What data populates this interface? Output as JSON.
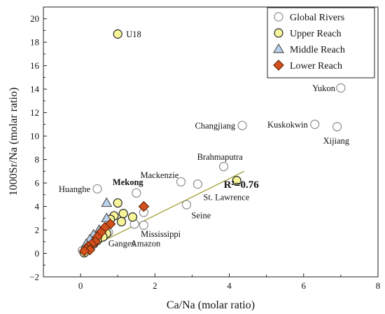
{
  "chart_data": {
    "type": "scatter",
    "xlabel": "Ca/Na (molar ratio)",
    "ylabel": "1000Sr/Na (molar ratio)",
    "xlim": [
      -1,
      8
    ],
    "ylim": [
      -2,
      21
    ],
    "x_ticks": [
      0,
      2,
      4,
      6,
      8
    ],
    "y_ticks": [
      -2,
      0,
      2,
      4,
      6,
      8,
      10,
      12,
      14,
      16,
      18,
      20
    ],
    "x_tick_labels": [
      "0",
      "2",
      "4",
      "6",
      "8"
    ],
    "y_tick_labels": [
      "−2",
      "0",
      "2",
      "4",
      "6",
      "8",
      "10",
      "12",
      "14",
      "16",
      "18",
      "20"
    ],
    "legend_position": "top-right",
    "trendline": {
      "x": [
        0,
        4.4
      ],
      "y": [
        0.1,
        7.0
      ],
      "color": "#9a9a2a",
      "label": "R²=0.76"
    },
    "series": [
      {
        "name": "Global Rivers",
        "marker": "circle",
        "fill": "#ffffff",
        "stroke": "#8c8c8c",
        "points": [
          {
            "x": 7.0,
            "y": 14.1,
            "label": "Yukon"
          },
          {
            "x": 4.35,
            "y": 10.9,
            "label": "Changjiang"
          },
          {
            "x": 6.3,
            "y": 11.0,
            "label": "Kuskokwin"
          },
          {
            "x": 6.9,
            "y": 10.8,
            "label": "Xijiang"
          },
          {
            "x": 3.85,
            "y": 7.4,
            "label": "Brahmaputra"
          },
          {
            "x": 2.7,
            "y": 6.1,
            "label": "Mackenzie"
          },
          {
            "x": 3.15,
            "y": 5.9,
            "label": "St. Lawrence"
          },
          {
            "x": 0.45,
            "y": 5.5,
            "label": "Huanghe"
          },
          {
            "x": 1.5,
            "y": 5.15,
            "label": "Mekong"
          },
          {
            "x": 2.85,
            "y": 4.15,
            "label": "Seine"
          },
          {
            "x": 1.45,
            "y": 2.5,
            "label": "Mississippi"
          },
          {
            "x": 1.7,
            "y": 3.5,
            "label": ""
          },
          {
            "x": 1.7,
            "y": 2.4,
            "label": ""
          },
          {
            "x": 0.75,
            "y": 1.8,
            "label": ""
          },
          {
            "x": 0.55,
            "y": 1.4,
            "label": ""
          },
          {
            "x": 0.3,
            "y": 0.85,
            "label": ""
          },
          {
            "x": 0.15,
            "y": 0.5,
            "label": ""
          },
          {
            "x": 0.05,
            "y": 0.25,
            "label": ""
          }
        ]
      },
      {
        "name": "Upper Reach",
        "marker": "circle",
        "fill": "#f7f59a",
        "stroke": "#222222",
        "points": [
          {
            "x": 1.0,
            "y": 18.7,
            "label": "U18"
          },
          {
            "x": 4.2,
            "y": 6.2,
            "label": ""
          },
          {
            "x": 1.0,
            "y": 4.3,
            "label": ""
          },
          {
            "x": 1.15,
            "y": 3.4,
            "label": ""
          },
          {
            "x": 1.4,
            "y": 3.1,
            "label": ""
          },
          {
            "x": 0.9,
            "y": 3.2,
            "label": ""
          },
          {
            "x": 0.8,
            "y": 2.9,
            "label": ""
          },
          {
            "x": 1.1,
            "y": 2.7,
            "label": ""
          },
          {
            "x": 0.7,
            "y": 1.7,
            "label": ""
          },
          {
            "x": 0.6,
            "y": 1.4,
            "label": ""
          },
          {
            "x": 0.45,
            "y": 1.1,
            "label": ""
          },
          {
            "x": 0.35,
            "y": 0.8,
            "label": ""
          },
          {
            "x": 0.25,
            "y": 0.55,
            "label": ""
          },
          {
            "x": 0.15,
            "y": 0.3,
            "label": ""
          },
          {
            "x": 0.1,
            "y": 0.05,
            "label": ""
          }
        ]
      },
      {
        "name": "Middle Reach",
        "marker": "triangle",
        "fill": "#b9d3ee",
        "stroke": "#555555",
        "points": [
          {
            "x": 0.7,
            "y": 4.3,
            "label": ""
          },
          {
            "x": 0.7,
            "y": 3.0,
            "label": ""
          },
          {
            "x": 0.5,
            "y": 2.0,
            "label": ""
          },
          {
            "x": 0.35,
            "y": 1.6,
            "label": ""
          },
          {
            "x": 0.25,
            "y": 1.2,
            "label": ""
          },
          {
            "x": 0.15,
            "y": 0.8,
            "label": ""
          }
        ]
      },
      {
        "name": "Lower Reach",
        "marker": "diamond",
        "fill": "#d4501c",
        "stroke": "#6b2a0e",
        "points": [
          {
            "x": 1.7,
            "y": 4.0,
            "label": ""
          },
          {
            "x": 0.8,
            "y": 2.5,
            "label": ""
          },
          {
            "x": 0.65,
            "y": 2.2,
            "label": ""
          },
          {
            "x": 0.55,
            "y": 1.8,
            "label": ""
          },
          {
            "x": 0.45,
            "y": 1.4,
            "label": ""
          },
          {
            "x": 0.4,
            "y": 1.0,
            "label": ""
          },
          {
            "x": 0.3,
            "y": 0.8,
            "label": ""
          },
          {
            "x": 0.2,
            "y": 0.6,
            "label": ""
          },
          {
            "x": 0.15,
            "y": 0.4,
            "label": ""
          },
          {
            "x": 0.25,
            "y": 0.3,
            "label": ""
          },
          {
            "x": 0.1,
            "y": 0.2,
            "label": ""
          }
        ]
      }
    ],
    "annotations": [
      {
        "text": "Ganges",
        "near": "Global Rivers",
        "x": 1.1,
        "y": 1.6
      },
      {
        "text": "Amazon",
        "near": "Global Rivers",
        "x": 1.75,
        "y": 1.6
      }
    ]
  }
}
